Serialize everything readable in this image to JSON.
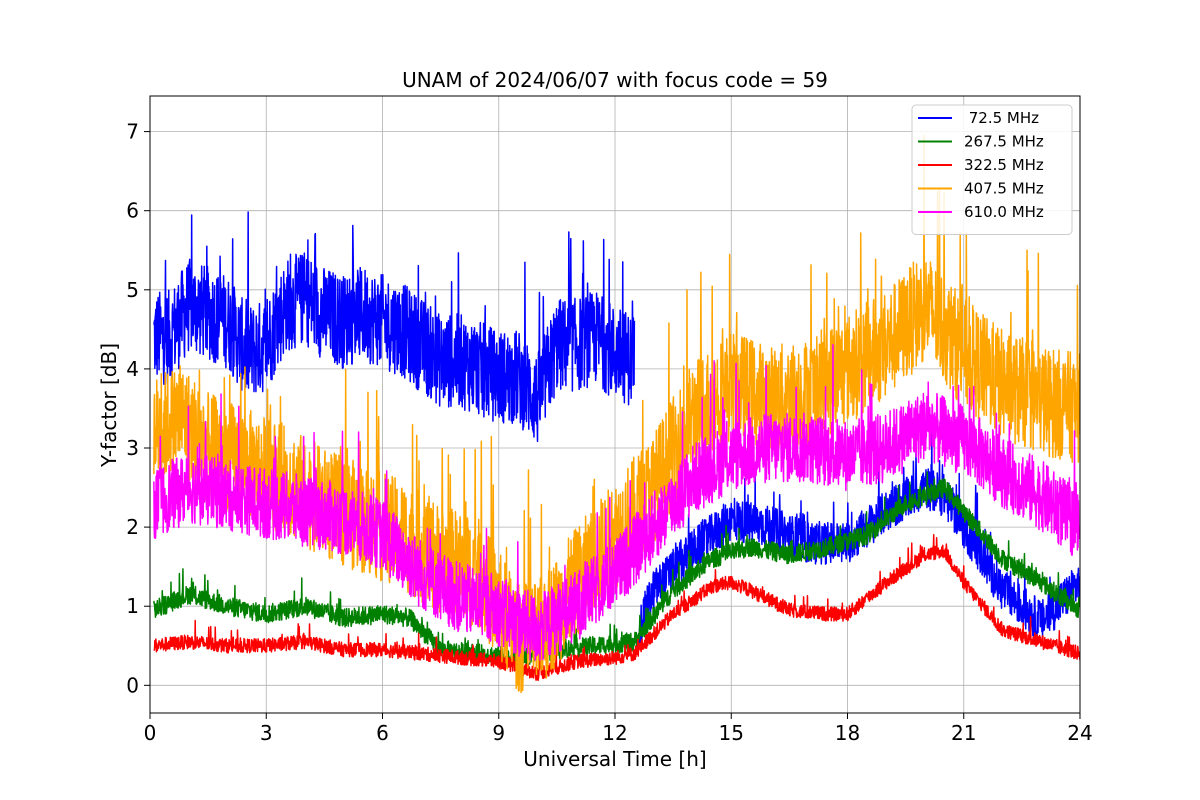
{
  "chart_data": {
    "type": "line",
    "title": "UNAM of 2024/06/07 with focus code = 59",
    "xlabel": "Universal Time [h]",
    "ylabel": "Y-factor [dB]",
    "xlim": [
      0,
      24
    ],
    "ylim": [
      -0.35,
      7.45
    ],
    "xticks": [
      0,
      3,
      6,
      9,
      12,
      15,
      18,
      21,
      24
    ],
    "xtick_labels": [
      "0",
      "3",
      "6",
      "9",
      "12",
      "15",
      "18",
      "21",
      "24"
    ],
    "yticks": [
      0,
      1,
      2,
      3,
      4,
      5,
      6,
      7
    ],
    "ytick_labels": [
      "0",
      "1",
      "2",
      "3",
      "4",
      "5",
      "6",
      "7"
    ],
    "grid": true,
    "legend_position": "top-right",
    "series": [
      {
        "name": " 72.5 MHz",
        "color": "#0000ff",
        "noise": 0.6,
        "x": [
          0.1,
          0.5,
          1.0,
          1.5,
          2.0,
          2.5,
          3.0,
          3.5,
          4.0,
          4.5,
          5.0,
          5.5,
          6.0,
          6.5,
          7.0,
          7.5,
          8.0,
          8.5,
          9.0,
          9.5,
          10.0,
          10.5,
          11.0,
          11.5,
          12.0,
          12.5
        ],
        "y": [
          4.4,
          4.4,
          4.8,
          4.7,
          4.6,
          4.2,
          4.3,
          4.8,
          4.9,
          4.7,
          4.6,
          4.7,
          4.6,
          4.5,
          4.3,
          4.1,
          4.1,
          4.0,
          3.9,
          3.9,
          3.6,
          4.3,
          4.3,
          4.4,
          4.2,
          4.1
        ],
        "x2": [
          12.6,
          13.0,
          14.0,
          15.0,
          16.0,
          17.0,
          18.0,
          19.0,
          20.0,
          20.5,
          21.0,
          22.0,
          23.0,
          24.0
        ],
        "y2": [
          0.7,
          1.2,
          1.7,
          2.1,
          2.0,
          1.8,
          1.8,
          2.2,
          2.5,
          2.4,
          2.0,
          1.2,
          0.8,
          1.3
        ]
      },
      {
        "name": "267.5 MHz",
        "color": "#008000",
        "noise": 0.12,
        "x": [
          0.1,
          1.0,
          2.0,
          3.0,
          4.0,
          5.0,
          6.0,
          6.7,
          7.5,
          8.5,
          9.5,
          10.5,
          11.5,
          12.5,
          13.5,
          14.5,
          15.5,
          16.5,
          17.5,
          18.5,
          19.5,
          20.5,
          21.0,
          22.0,
          23.0,
          24.0
        ],
        "y": [
          0.95,
          1.15,
          1.0,
          0.9,
          1.0,
          0.85,
          0.9,
          0.85,
          0.45,
          0.4,
          0.35,
          0.45,
          0.5,
          0.55,
          1.2,
          1.6,
          1.75,
          1.65,
          1.75,
          1.9,
          2.3,
          2.5,
          2.2,
          1.6,
          1.3,
          0.95
        ]
      },
      {
        "name": "322.5 MHz",
        "color": "#ff0000",
        "noise": 0.09,
        "x": [
          0.1,
          1.0,
          2.0,
          3.0,
          4.0,
          5.0,
          6.0,
          7.0,
          8.0,
          9.0,
          10.0,
          11.0,
          12.0,
          12.5,
          13.5,
          14.5,
          15.0,
          15.5,
          16.5,
          17.5,
          18.0,
          19.0,
          20.0,
          20.5,
          21.0,
          22.0,
          23.0,
          24.0
        ],
        "y": [
          0.5,
          0.55,
          0.5,
          0.5,
          0.55,
          0.45,
          0.45,
          0.4,
          0.35,
          0.3,
          0.15,
          0.3,
          0.35,
          0.4,
          0.9,
          1.25,
          1.3,
          1.2,
          0.95,
          0.9,
          0.9,
          1.3,
          1.65,
          1.7,
          1.3,
          0.7,
          0.55,
          0.4
        ]
      },
      {
        "name": "407.5 MHz",
        "color": "#ffa500",
        "noise": 0.7,
        "x": [
          0.1,
          0.8,
          1.5,
          2.5,
          3.5,
          4.5,
          5.5,
          6.5,
          7.5,
          8.5,
          9.5,
          10.0,
          11.0,
          12.0,
          13.0,
          14.0,
          15.0,
          16.0,
          17.0,
          18.0,
          19.0,
          20.0,
          21.0,
          22.0,
          23.0,
          24.0
        ],
        "y": [
          3.2,
          3.4,
          3.0,
          2.8,
          2.6,
          2.3,
          2.1,
          1.9,
          1.6,
          1.4,
          0.6,
          0.6,
          1.3,
          1.9,
          2.5,
          3.4,
          3.8,
          3.6,
          3.7,
          4.0,
          4.3,
          4.8,
          4.2,
          3.8,
          3.6,
          3.5
        ]
      },
      {
        "name": "610.0 MHz",
        "color": "#ff00ff",
        "noise": 0.45,
        "x": [
          0.1,
          1.0,
          2.0,
          3.0,
          4.0,
          5.0,
          6.0,
          7.0,
          8.0,
          8.8,
          9.5,
          10.0,
          11.0,
          12.0,
          13.0,
          14.0,
          15.0,
          16.0,
          17.0,
          18.0,
          19.0,
          20.0,
          21.0,
          22.0,
          23.0,
          24.0
        ],
        "y": [
          2.3,
          2.5,
          2.4,
          2.3,
          2.2,
          2.1,
          1.9,
          1.4,
          1.1,
          1.0,
          0.8,
          0.7,
          1.0,
          1.4,
          2.0,
          2.6,
          2.9,
          3.0,
          3.0,
          2.9,
          3.0,
          3.3,
          3.1,
          2.7,
          2.4,
          2.0
        ]
      }
    ]
  }
}
